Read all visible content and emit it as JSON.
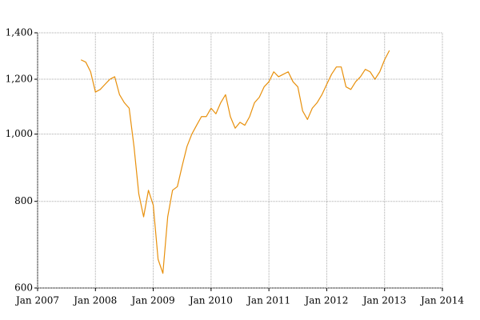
{
  "chart_data": {
    "type": "line",
    "log_y": true,
    "grid": true,
    "x": [
      "2007-10",
      "2007-11",
      "2007-12",
      "2008-01",
      "2008-02",
      "2008-03",
      "2008-04",
      "2008-05",
      "2008-06",
      "2008-07",
      "2008-08",
      "2008-09",
      "2008-10",
      "2008-11",
      "2008-12",
      "2009-01",
      "2009-02",
      "2009-03",
      "2009-04",
      "2009-05",
      "2009-06",
      "2009-07",
      "2009-08",
      "2009-09",
      "2009-10",
      "2009-11",
      "2009-12",
      "2010-01",
      "2010-02",
      "2010-03",
      "2010-04",
      "2010-05",
      "2010-06",
      "2010-07",
      "2010-08",
      "2010-09",
      "2010-10",
      "2010-11",
      "2010-12",
      "2011-01",
      "2011-02",
      "2011-03",
      "2011-04",
      "2011-05",
      "2011-06",
      "2011-07",
      "2011-08",
      "2011-09",
      "2011-10",
      "2011-11",
      "2011-12",
      "2012-01",
      "2012-02",
      "2012-03",
      "2012-04",
      "2012-05",
      "2012-06",
      "2012-07",
      "2012-08",
      "2012-09",
      "2012-10",
      "2012-11",
      "2012-12",
      "2013-01",
      "2013-02"
    ],
    "series": [
      {
        "color": "#e8900c",
        "values": [
          1280,
          1270,
          1230,
          1150,
          1160,
          1180,
          1200,
          1210,
          1140,
          1110,
          1090,
          960,
          820,
          760,
          830,
          790,
          660,
          630,
          760,
          830,
          840,
          900,
          960,
          1000,
          1030,
          1060,
          1060,
          1090,
          1070,
          1110,
          1140,
          1060,
          1020,
          1040,
          1030,
          1060,
          1110,
          1130,
          1170,
          1190,
          1230,
          1210,
          1220,
          1230,
          1190,
          1170,
          1080,
          1050,
          1090,
          1110,
          1140,
          1180,
          1220,
          1250,
          1250,
          1170,
          1160,
          1190,
          1210,
          1240,
          1230,
          1200,
          1230,
          1280,
          1320
        ]
      }
    ],
    "xlim": [
      "2007-01",
      "2014-01"
    ],
    "xticks": [
      {
        "value": "2007-01",
        "label": "Jan 2007"
      },
      {
        "value": "2008-01",
        "label": "Jan 2008"
      },
      {
        "value": "2009-01",
        "label": "Jan 2009"
      },
      {
        "value": "2010-01",
        "label": "Jan 2010"
      },
      {
        "value": "2011-01",
        "label": "Jan 2011"
      },
      {
        "value": "2012-01",
        "label": "Jan 2012"
      },
      {
        "value": "2013-01",
        "label": "Jan 2013"
      },
      {
        "value": "2014-01",
        "label": "Jan 2014"
      }
    ],
    "ylim": [
      600,
      1400
    ],
    "yticks": [
      600,
      800,
      {
        "value": 1000,
        "label": "1,000"
      },
      {
        "value": 1200,
        "label": "1,200"
      },
      {
        "value": 1400,
        "label": "1,400"
      }
    ]
  }
}
